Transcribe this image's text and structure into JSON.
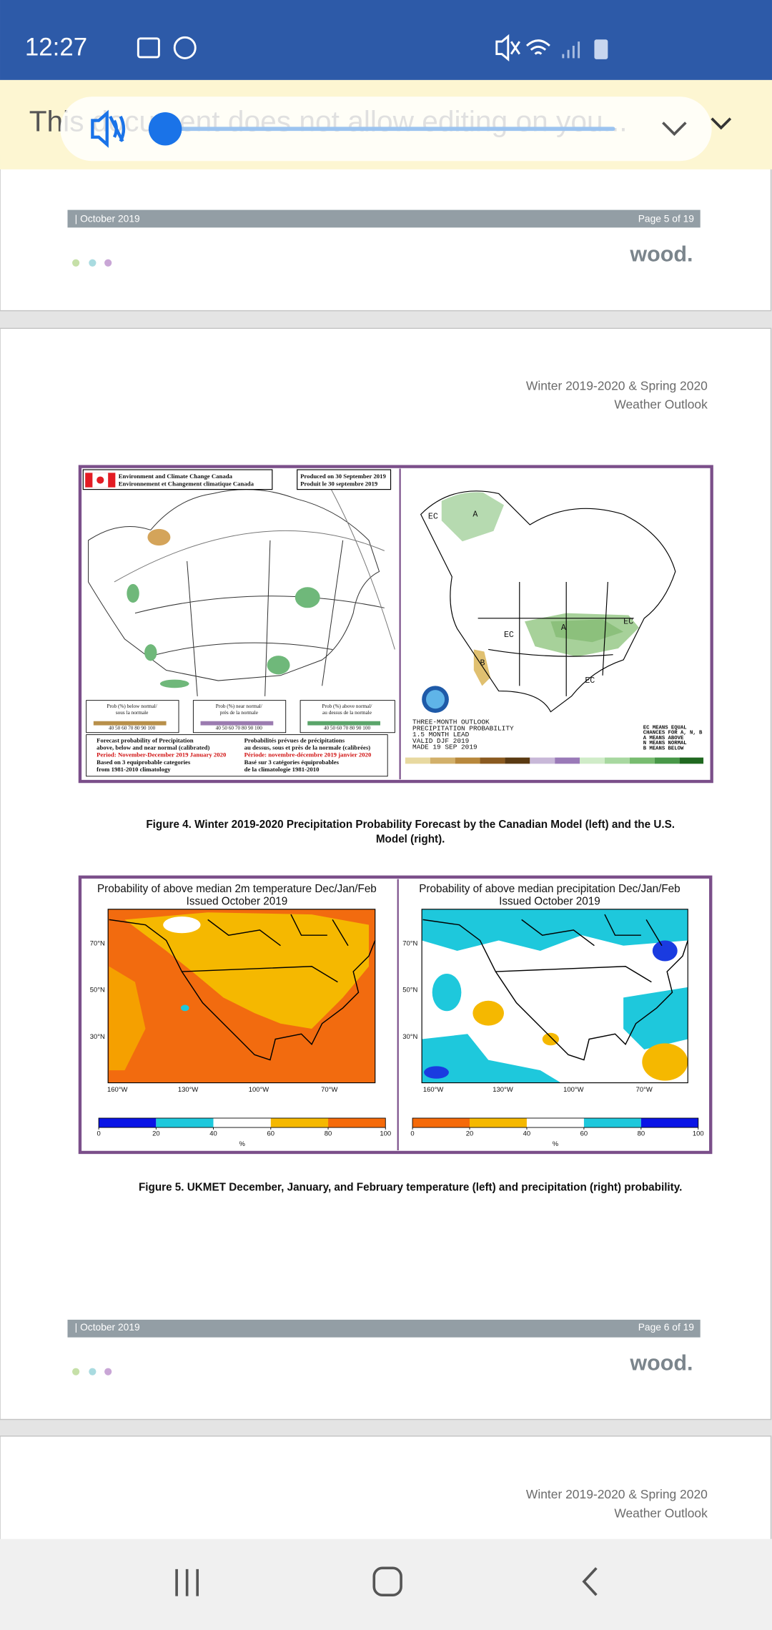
{
  "status_bar": {
    "time": "12:27"
  },
  "banner": {
    "text": "This document does not allow editing on you..."
  },
  "page5": {
    "footer": {
      "date": "| October 2019",
      "page": "Page 5 of 19",
      "logo": "wood."
    }
  },
  "page6": {
    "header": [
      "Winter 2019-2020 & Spring 2020",
      "Weather Outlook"
    ],
    "figure4": {
      "canada": {
        "agency": [
          "Environment and Climate Change Canada",
          "Environnement et Changement climatique Canada"
        ],
        "produced": [
          "Produced on 30 September 2019",
          "Produit le 30 septembre 2019"
        ],
        "legend": [
          {
            "label": [
              "Prob (%) below normal/",
              "sous la normale"
            ],
            "scale": "40 50 60 70 80 90 100"
          },
          {
            "label": [
              "Prob (%) near normal/",
              "près de la normale"
            ],
            "scale": "40 50 60 70 80 90 100"
          },
          {
            "label": [
              "Prob (%) above normal/",
              "au dessus de la normale"
            ],
            "scale": "40 50 60 70 80 90 100"
          }
        ],
        "notes_en": [
          "Forecast probability of Precipitation",
          "above, below and near normal (calibrated)",
          "Period: November-December 2019 January 2020",
          "Based on 3 equiprobable categories",
          "from 1981-2010 climatology"
        ],
        "notes_fr": [
          "Probabilités prévues de précipitations",
          "au dessus, sous et près de la normale (calibrées)",
          "Période: novembre-décembre 2019 janvier 2020",
          "Basé sur 3 catégories équiprobables",
          "de la climatologie 1981-2010"
        ]
      },
      "noaa": {
        "outlook": [
          "THREE-MONTH OUTLOOK",
          "PRECIPITATION PROBABILITY",
          "1.5 MONTH LEAD",
          "VALID DJF 2019",
          "MADE 19 SEP 2019"
        ],
        "key": [
          "EC MEANS EQUAL",
          "CHANCES FOR A, N, B",
          "A MEANS ABOVE",
          "N MEANS NORMAL",
          "B MEANS BELOW"
        ],
        "map_labels": [
          "EC",
          "A",
          "EC",
          "A",
          "EC",
          "B",
          "EC"
        ]
      },
      "caption": [
        "Figure 4. Winter 2019-2020 Precipitation Probability Forecast by the Canadian Model (left) and the U.S.",
        "Model (right)."
      ]
    },
    "figure5": {
      "panels": [
        {
          "title": [
            "Probability of above median 2m temperature Dec/Jan/Feb",
            "Issued October 2019"
          ],
          "lat": [
            "70°N",
            "50°N",
            "30°N"
          ],
          "lon": [
            "160°W",
            "130°W",
            "100°W",
            "70°W"
          ],
          "colorbar": {
            "ticks": [
              0,
              20,
              40,
              60,
              80,
              100
            ],
            "colors": [
              "#0a14e6",
              "#1ec8dc",
              "#ffffff",
              "#f5b800",
              "#f56a0a"
            ],
            "unit": "%"
          }
        },
        {
          "title": [
            "Probability of above median precipitation Dec/Jan/Feb",
            "Issued October 2019"
          ],
          "lat": [
            "70°N",
            "50°N",
            "30°N"
          ],
          "lon": [
            "160°W",
            "130°W",
            "100°W",
            "70°W"
          ],
          "colorbar": {
            "ticks": [
              0,
              20,
              40,
              60,
              80,
              100
            ],
            "colors": [
              "#f56a0a",
              "#f5b800",
              "#ffffff",
              "#1ec8dc",
              "#0a14e6"
            ],
            "unit": "%"
          }
        }
      ],
      "caption": "Figure 5. UKMET December, January, and February temperature (left) and precipitation (right) probability."
    },
    "footer": {
      "date": "| October 2019",
      "page": "Page 6 of 19",
      "logo": "wood."
    }
  },
  "page7": {
    "header": [
      "Winter 2019-2020 & Spring 2020",
      "Weather Outlook"
    ]
  }
}
